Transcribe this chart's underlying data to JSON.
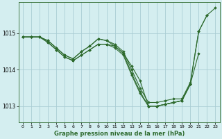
{
  "title": "Graphe pression niveau de la mer (hPa)",
  "bg_color": "#d4eef0",
  "grid_color": "#aacdd4",
  "line_color": "#2d6a2d",
  "marker": "D",
  "markersize": 1.8,
  "linewidth": 0.8,
  "xlim": [
    -0.5,
    23.5
  ],
  "ylim": [
    1012.55,
    1015.85
  ],
  "yticks": [
    1013,
    1014,
    1015
  ],
  "xticks": [
    0,
    1,
    2,
    3,
    4,
    5,
    6,
    7,
    8,
    9,
    10,
    11,
    12,
    13,
    14,
    15,
    16,
    17,
    18,
    19,
    20,
    21,
    22,
    23
  ],
  "series": [
    [
      1014.9,
      1014.9,
      1014.9,
      1014.75,
      1014.55,
      1014.35,
      1014.25,
      1014.4,
      1014.55,
      1014.7,
      1014.7,
      1014.65,
      1014.45,
      1014.1,
      1013.7,
      1013.0,
      1013.0,
      1013.05,
      1013.1,
      1013.15,
      1013.6,
      1014.45,
      null,
      null
    ],
    [
      1014.9,
      1014.9,
      1014.9,
      1014.75,
      1014.55,
      1014.35,
      1014.25,
      1014.4,
      1014.55,
      1014.7,
      1014.7,
      1014.6,
      1014.4,
      1013.85,
      1013.35,
      1013.0,
      1013.0,
      1013.05,
      1013.1,
      1013.15,
      1013.6,
      null,
      null,
      null
    ],
    [
      1014.9,
      1014.9,
      1014.9,
      1014.8,
      1014.6,
      1014.4,
      1014.3,
      1014.5,
      1014.65,
      1014.85,
      1014.8,
      1014.7,
      1014.5,
      1014.0,
      1013.5,
      1013.1,
      1013.1,
      1013.15,
      1013.2,
      1013.2,
      1013.65,
      1015.05,
      1015.5,
      null
    ],
    [
      1014.9,
      1014.9,
      1014.9,
      1014.8,
      1014.6,
      1014.4,
      1014.3,
      1014.5,
      1014.65,
      1014.85,
      1014.8,
      1014.65,
      1014.45,
      1013.9,
      1013.4,
      1013.0,
      1013.0,
      1013.05,
      1013.1,
      1013.15,
      1013.6,
      1015.05,
      1015.5,
      1015.7
    ]
  ]
}
